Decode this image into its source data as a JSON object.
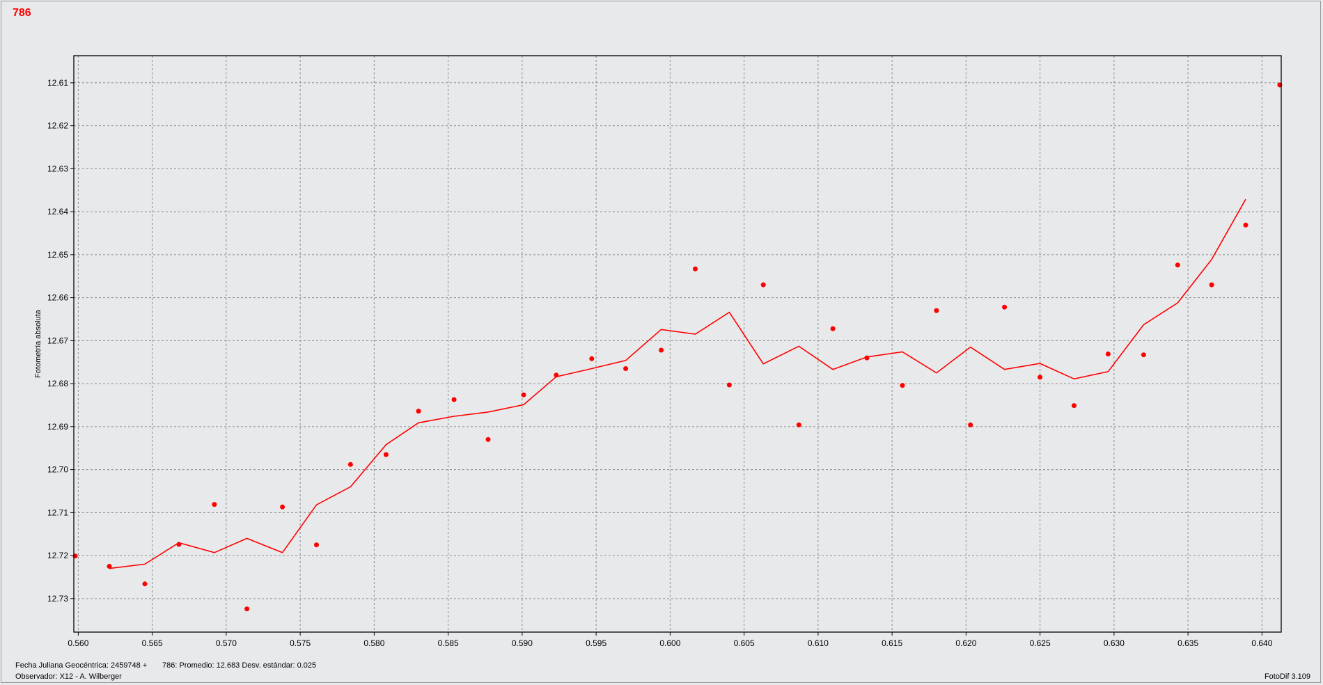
{
  "object_label": "786",
  "footer": {
    "jd_label": "Fecha Juliana Geocéntrica: 2459748 +",
    "stats": "786: Promedio: 12.683  Desv. estándar: 0.025",
    "observer": "Observador: X12 - A. Wilberger",
    "software": "FotoDif 3.109"
  },
  "colors": {
    "background": "#e8e9eb",
    "plot_background": "#e8e9eb",
    "series": "#ff0000",
    "grid": "#8a8a8a",
    "axis": "#000000"
  },
  "chart_data": {
    "type": "scatter",
    "title": "",
    "xlabel": "",
    "ylabel": "Fotometría absoluta",
    "xlim": [
      0.5597,
      0.6413
    ],
    "ylim": [
      12.6037,
      12.7378
    ],
    "y_inverted": true,
    "grid": true,
    "xticks": [
      0.56,
      0.565,
      0.57,
      0.575,
      0.58,
      0.585,
      0.59,
      0.595,
      0.6,
      0.605,
      0.61,
      0.615,
      0.62,
      0.625,
      0.63,
      0.635,
      0.64
    ],
    "xtick_labels": [
      "0.560",
      "0.565",
      "0.570",
      "0.575",
      "0.580",
      "0.585",
      "0.590",
      "0.595",
      "0.600",
      "0.605",
      "0.610",
      "0.615",
      "0.620",
      "0.625",
      "0.630",
      "0.635",
      "0.640"
    ],
    "yticks": [
      12.61,
      12.62,
      12.63,
      12.64,
      12.65,
      12.66,
      12.67,
      12.68,
      12.69,
      12.7,
      12.71,
      12.72,
      12.73
    ],
    "ytick_labels": [
      "12.61",
      "12.62",
      "12.63",
      "12.64",
      "12.65",
      "12.66",
      "12.67",
      "12.68",
      "12.69",
      "12.70",
      "12.71",
      "12.72",
      "12.73"
    ],
    "points": {
      "x": [
        0.5598,
        0.5621,
        0.5645,
        0.5668,
        0.5692,
        0.5714,
        0.5738,
        0.5761,
        0.5784,
        0.5808,
        0.583,
        0.5854,
        0.5877,
        0.5901,
        0.5923,
        0.5947,
        0.597,
        0.5994,
        0.6017,
        0.604,
        0.6063,
        0.6087,
        0.611,
        0.6133,
        0.6157,
        0.618,
        0.6203,
        0.6226,
        0.625,
        0.6273,
        0.6296,
        0.632,
        0.6343,
        0.6366,
        0.6389,
        0.6412
      ],
      "y": [
        12.7201,
        12.7225,
        12.7266,
        12.7174,
        12.7081,
        12.7324,
        12.7087,
        12.7175,
        12.6988,
        12.6965,
        12.6864,
        12.6837,
        12.693,
        12.6826,
        12.678,
        12.6742,
        12.6765,
        12.6722,
        12.6533,
        12.6803,
        12.657,
        12.6896,
        12.6672,
        12.674,
        12.6804,
        12.663,
        12.6896,
        12.6622,
        12.6785,
        12.6851,
        12.6731,
        12.6733,
        12.6524,
        12.657,
        12.6431,
        12.6105
      ]
    },
    "trend_line": {
      "x": [
        0.5621,
        0.5645,
        0.5668,
        0.5692,
        0.5714,
        0.5738,
        0.5761,
        0.5784,
        0.5808,
        0.583,
        0.5854,
        0.5877,
        0.5901,
        0.5923,
        0.5947,
        0.597,
        0.5994,
        0.6017,
        0.604,
        0.6063,
        0.6087,
        0.611,
        0.6133,
        0.6157,
        0.618,
        0.6203,
        0.6226,
        0.625,
        0.6273,
        0.6296,
        0.632,
        0.6343,
        0.6366,
        0.6389
      ],
      "y": [
        12.723,
        12.722,
        12.717,
        12.7193,
        12.716,
        12.7193,
        12.7082,
        12.704,
        12.6942,
        12.6891,
        12.6876,
        12.6866,
        12.6849,
        12.6784,
        12.6765,
        12.6746,
        12.6674,
        12.6685,
        12.6634,
        12.6754,
        12.6713,
        12.6767,
        12.6738,
        12.6726,
        12.6775,
        12.6715,
        12.6767,
        12.6753,
        12.6789,
        12.6772,
        12.6663,
        12.6612,
        12.6511,
        12.6371
      ]
    }
  }
}
